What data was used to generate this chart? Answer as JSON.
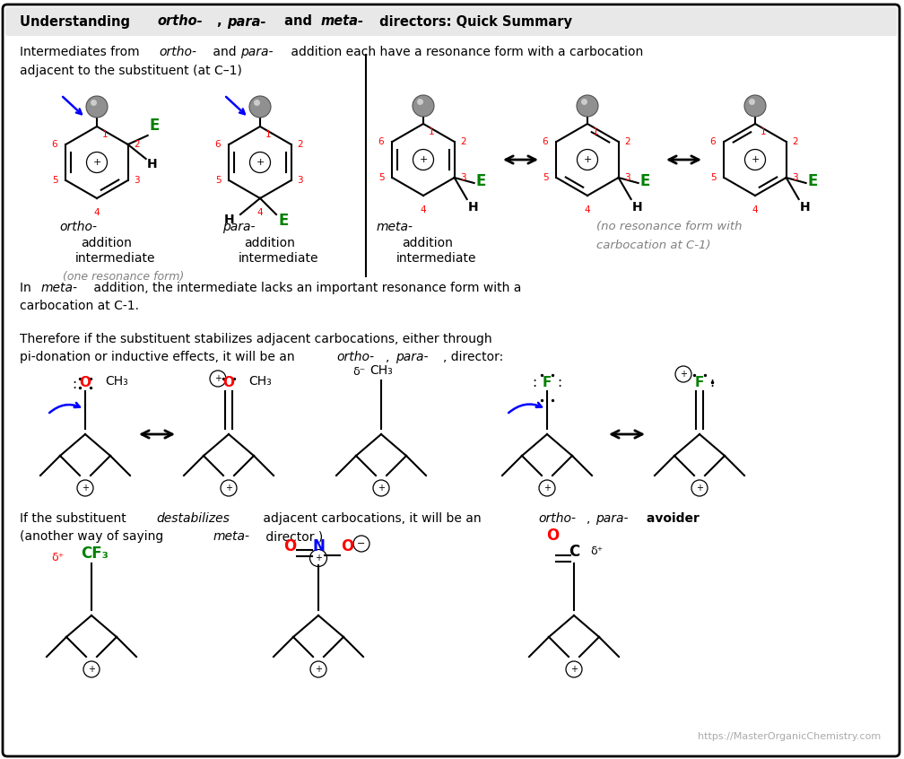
{
  "title_parts": [
    {
      "text": "Understanding ",
      "bold": true,
      "italic": false
    },
    {
      "text": "ortho-",
      "bold": true,
      "italic": true
    },
    {
      "text": ", ",
      "bold": true,
      "italic": false
    },
    {
      "text": "para-",
      "bold": true,
      "italic": true
    },
    {
      "text": " and ",
      "bold": true,
      "italic": false
    },
    {
      "text": "meta-",
      "bold": true,
      "italic": true
    },
    {
      "text": " directors: Quick Summary",
      "bold": true,
      "italic": false
    }
  ],
  "bg_color": "#ffffff",
  "url": "https://MasterOrganicChemistry.com",
  "fig_width": 10.08,
  "fig_height": 8.46,
  "dpi": 100
}
